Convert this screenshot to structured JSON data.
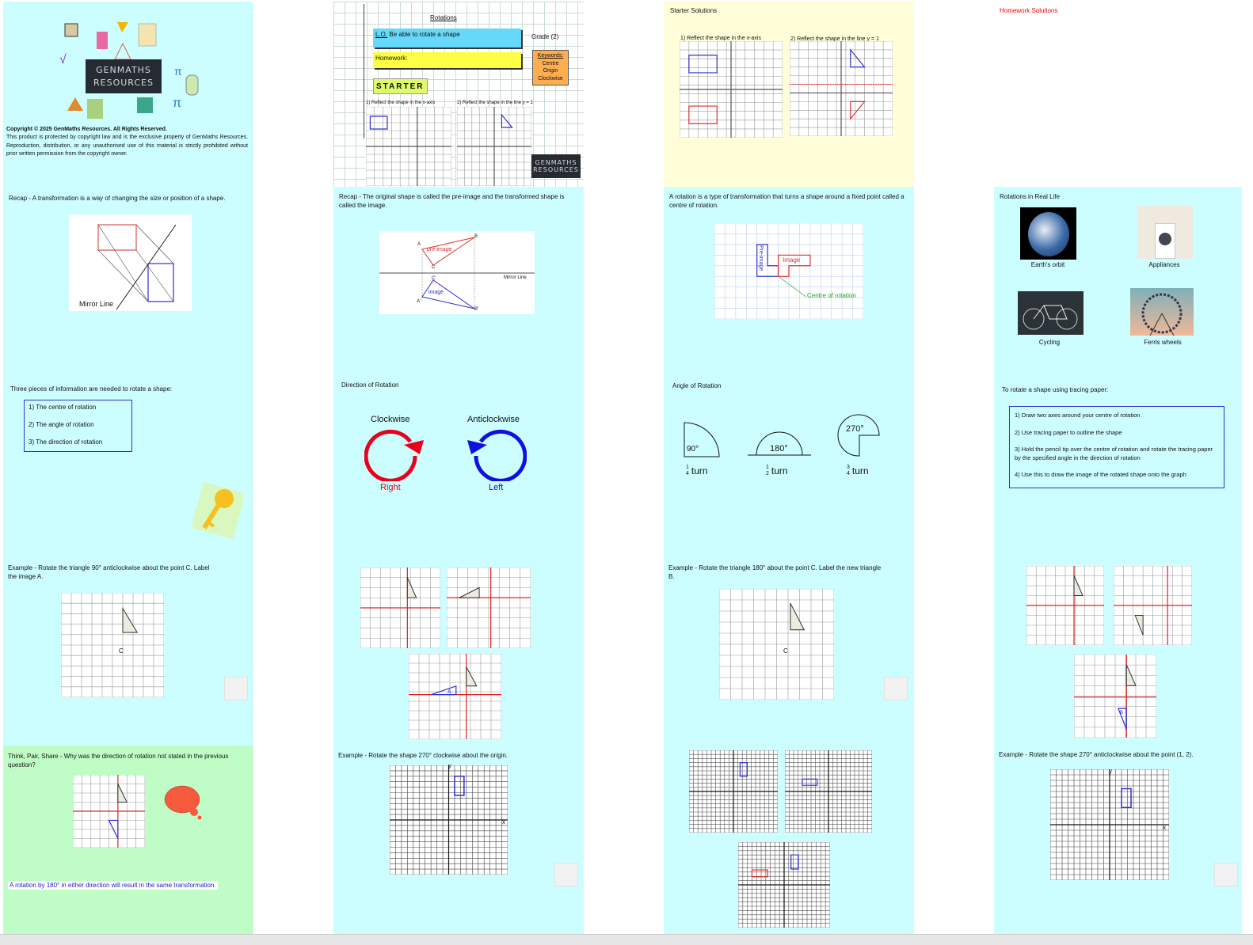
{
  "title_slide": {
    "logo_text": "GENMATHS RESOURCES",
    "copyright_heading": "Copyright © 2025 GenMaths Resources. All Rights Reserved.",
    "copyright_body": "This product is protected by copyright law and is the exclusive property of GenMaths Resources. Reproduction, distribution, or any unauthorised use of this material is strictly prohibited without prior written permission from the copyright owner."
  },
  "intro_slide": {
    "title": "Rotations",
    "lo_prefix": "L.O.",
    "lo": "Be able to rotate a shape",
    "grade": "Grade (2)",
    "homework": "Homework:",
    "keywords_heading": "Keywords:",
    "keywords": [
      "Centre",
      "Origin",
      "Clockwise"
    ],
    "starter": "STARTER",
    "q1": "1) Reflect the shape in the x-axis",
    "q2": "2) Reflect the shape in the line y = 1"
  },
  "starter_solutions": {
    "title": "Starter Solutions",
    "q1": "1) Reflect the shape in the x-axis",
    "q2": "2) Reflect the shape in the line y = 1"
  },
  "homework_solutions": {
    "title": "Homework Solutions",
    "color": "#ff0000"
  },
  "recap1": {
    "text": "Recap - A transformation is a way of changing the size or position of a shape.",
    "mirror_line": "Mirror Line"
  },
  "recap2": {
    "text": "Recap - The original shape is called the pre-image and the transformed shape is called the image.",
    "pre_image": "pre-image",
    "image": "image",
    "mirror_line": "Mirror Line",
    "labels": [
      "A",
      "B",
      "C",
      "A'",
      "B'",
      "C'"
    ]
  },
  "definition": {
    "text": "A rotation is a type of transformation that turns a shape around a fixed point called a centre of rotation.",
    "pre_image": "Pre-image",
    "image": "Image",
    "centre": "Centre of rotation"
  },
  "real_life": {
    "title": "Rotations in Real Life",
    "items": [
      "Earth's orbit",
      "Appliances",
      "Cycling",
      "Ferris wheels"
    ]
  },
  "three_pieces": {
    "text": "Three pieces of information are needed to rotate a shape:",
    "items": [
      "1) The centre of rotation",
      "2) The angle of rotation",
      "3) The direction of rotation"
    ]
  },
  "direction": {
    "title": "Direction of Rotation",
    "clockwise": "Clockwise",
    "right": "Right",
    "anticlockwise": "Anticlockwise",
    "left": "Left",
    "clockwise_color": "#e8001c",
    "anticlockwise_color": "#1010e0"
  },
  "angle": {
    "title": "Angle of Rotation",
    "items": [
      {
        "deg": "90°",
        "num": "1",
        "den": "4",
        "turn": "turn"
      },
      {
        "deg": "180°",
        "num": "1",
        "den": "2",
        "turn": "turn"
      },
      {
        "deg": "270°",
        "num": "3",
        "den": "4",
        "turn": "turn"
      }
    ]
  },
  "tracing": {
    "text": "To rotate a shape using tracing paper:",
    "steps": [
      "1) Draw two axes around your centre of rotation",
      "2) Use tracing paper to outline the shape",
      "3) Hold the pencil tip over the centre of rotation and rotate the tracing paper by the specified angle in the direction of rotation",
      "4) Use this to draw the image of the rotated shape onto the graph"
    ]
  },
  "example1": {
    "text": "Example - Rotate the triangle 90° anticlockwise about the point C. Label the image A.",
    "point": "C",
    "label": "A"
  },
  "example2": {
    "text": "Example - Rotate the triangle 180° about the point C. Label the new triangle B.",
    "point": "C",
    "label": "B"
  },
  "think": {
    "text": "Think, Pair, Share - Why was the direction of rotation not stated in the previous question?",
    "answer": "A rotation by 180° in either direction will result in the same transformation.",
    "answer_color": "#1a1ad0"
  },
  "example3": {
    "text": "Example - Rotate the shape 270° clockwise about the origin.",
    "x": "x",
    "y": "y"
  },
  "example4": {
    "text": "Example - Rotate the shape 270° anticlockwise about the point (1, 2).",
    "x": "x",
    "y": "y"
  }
}
